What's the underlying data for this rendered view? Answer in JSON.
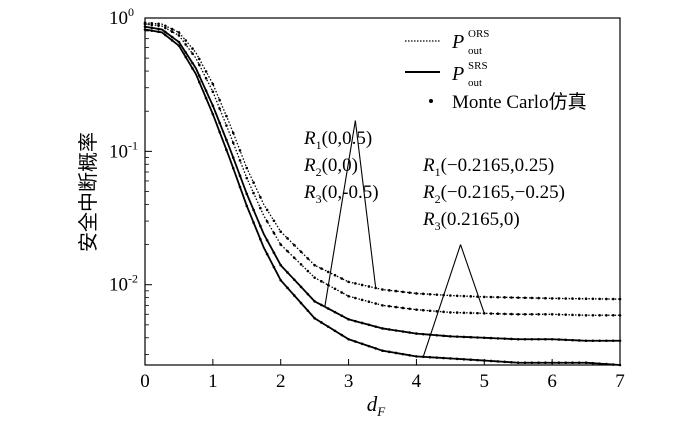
{
  "chart_data": {
    "type": "line",
    "xlabel_main": "d",
    "xlabel_sub": "F",
    "ylabel": "安全中断概率",
    "xlim": [
      0,
      7
    ],
    "ylim": [
      0.0025,
      1
    ],
    "yscale": "log",
    "grid": false,
    "legend_position": "top-right",
    "x_ticks": [
      {
        "v": 0,
        "label": "0"
      },
      {
        "v": 1,
        "label": "1"
      },
      {
        "v": 2,
        "label": "2"
      },
      {
        "v": 3,
        "label": "3"
      },
      {
        "v": 4,
        "label": "4"
      },
      {
        "v": 5,
        "label": "5"
      },
      {
        "v": 6,
        "label": "6"
      },
      {
        "v": 7,
        "label": "7"
      }
    ],
    "y_ticks": [
      {
        "v": 1,
        "base": "10",
        "exp": "0"
      },
      {
        "v": 0.1,
        "base": "10",
        "exp": "-1"
      },
      {
        "v": 0.01,
        "base": "10",
        "exp": "-2"
      }
    ],
    "legend": [
      {
        "main": "P",
        "sup": "ORS",
        "sub": "out",
        "style": "dotted"
      },
      {
        "main": "P",
        "sup": "SRS",
        "sub": "out",
        "style": "solid"
      },
      {
        "text": "Monte Carlo仿真",
        "style": "marker"
      }
    ],
    "series": [
      {
        "style": "dotted",
        "x": [
          0,
          0.25,
          0.5,
          0.75,
          1,
          1.25,
          1.5,
          1.75,
          2,
          2.5,
          3,
          3.5,
          4,
          4.5,
          5,
          5.5,
          6,
          6.5,
          7
        ],
        "y": [
          0.92,
          0.9,
          0.78,
          0.55,
          0.32,
          0.16,
          0.075,
          0.04,
          0.025,
          0.014,
          0.0105,
          0.0092,
          0.0086,
          0.0083,
          0.0081,
          0.008,
          0.0079,
          0.00785,
          0.0078
        ]
      },
      {
        "style": "dotted",
        "x": [
          0,
          0.25,
          0.5,
          0.75,
          1,
          1.25,
          1.5,
          1.75,
          2,
          2.5,
          3,
          3.5,
          4,
          4.5,
          5,
          5.5,
          6,
          6.5,
          7
        ],
        "y": [
          0.9,
          0.87,
          0.74,
          0.5,
          0.28,
          0.135,
          0.063,
          0.033,
          0.02,
          0.0113,
          0.0082,
          0.007,
          0.0065,
          0.0062,
          0.0061,
          0.006,
          0.006,
          0.0059,
          0.0059
        ]
      },
      {
        "style": "solid",
        "x": [
          0,
          0.25,
          0.5,
          0.75,
          1,
          1.25,
          1.5,
          1.75,
          2,
          2.5,
          3,
          3.5,
          4,
          4.5,
          5,
          5.5,
          6,
          6.5,
          7
        ],
        "y": [
          0.86,
          0.82,
          0.66,
          0.42,
          0.22,
          0.105,
          0.048,
          0.024,
          0.014,
          0.0075,
          0.0055,
          0.0047,
          0.0043,
          0.0041,
          0.004,
          0.0039,
          0.0039,
          0.0038,
          0.0038
        ]
      },
      {
        "style": "solid",
        "x": [
          0,
          0.25,
          0.5,
          0.75,
          1,
          1.25,
          1.5,
          1.75,
          2,
          2.5,
          3,
          3.5,
          4,
          4.5,
          5,
          5.5,
          6,
          6.5,
          7
        ],
        "y": [
          0.82,
          0.78,
          0.62,
          0.38,
          0.19,
          0.088,
          0.039,
          0.019,
          0.0108,
          0.0056,
          0.0039,
          0.0032,
          0.0029,
          0.0028,
          0.0027,
          0.0026,
          0.0026,
          0.0026,
          0.0025
        ]
      }
    ],
    "annotations": [
      {
        "lines": [
          [
            {
              "R": "R",
              "sub": "1",
              "rest": "(0,0.5)"
            }
          ],
          [
            {
              "R": "R",
              "sub": "2",
              "rest": "(0,0)"
            }
          ],
          [
            {
              "R": "R",
              "sub": "3",
              "rest": "(0,-0.5)"
            }
          ]
        ]
      },
      {
        "lines": [
          [
            {
              "R": "R",
              "sub": "1",
              "rest": "(−0.2165,0.25)"
            }
          ],
          [
            {
              "R": "R",
              "sub": "2",
              "rest": "(−0.2165,−0.25)"
            }
          ],
          [
            {
              "R": "R",
              "sub": "3",
              "rest": "(0.2165,0)"
            }
          ]
        ]
      }
    ],
    "pointers": [
      {
        "from": [
          3.1,
          0.17
        ],
        "to_series": 0,
        "at_x": 3.4
      },
      {
        "from": [
          3.1,
          0.17
        ],
        "to_series": 2,
        "at_x": 2.65
      },
      {
        "from": [
          4.65,
          0.02
        ],
        "to_series": 1,
        "at_x": 5.0
      },
      {
        "from": [
          4.65,
          0.02
        ],
        "to_series": 3,
        "at_x": 4.1
      }
    ]
  }
}
